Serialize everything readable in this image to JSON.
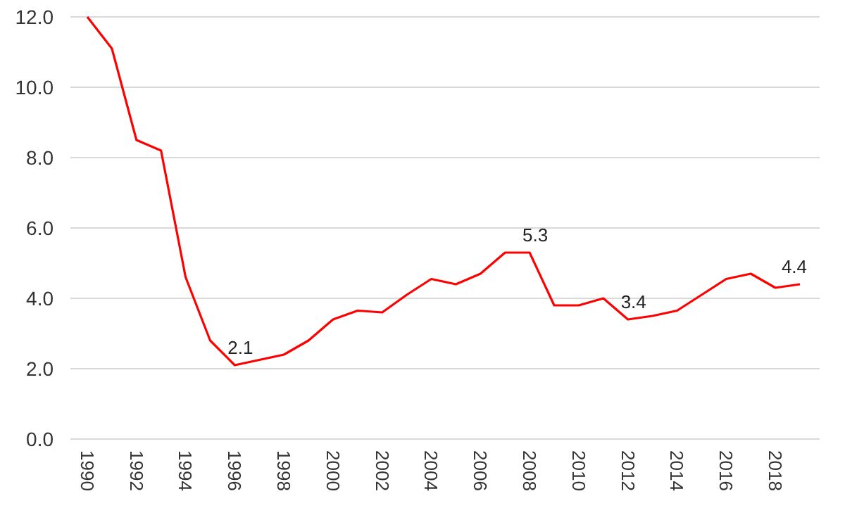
{
  "chart_data": {
    "type": "line",
    "categories": [
      "1990",
      null,
      "1992",
      null,
      "1994",
      null,
      "1996",
      null,
      "1998",
      null,
      "2000",
      null,
      "2002",
      null,
      "2004",
      null,
      "2006",
      null,
      "2008",
      null,
      "2010",
      null,
      "2012",
      null,
      "2014",
      null,
      "2016",
      null,
      "2018",
      null
    ],
    "series": [
      {
        "color": "#ff0000",
        "values": [
          12.0,
          11.1,
          8.5,
          8.2,
          4.6,
          2.8,
          2.1,
          2.25,
          2.4,
          2.8,
          3.4,
          3.65,
          3.6,
          4.1,
          4.55,
          4.4,
          4.7,
          5.3,
          5.3,
          3.8,
          3.8,
          4.0,
          3.4,
          3.5,
          3.65,
          4.1,
          4.55,
          4.7,
          4.3,
          4.4
        ],
        "value_labels": [
          null,
          null,
          null,
          null,
          null,
          null,
          "2.1",
          null,
          null,
          null,
          null,
          null,
          null,
          null,
          null,
          null,
          null,
          null,
          "5.3",
          null,
          null,
          null,
          "3.4",
          null,
          null,
          null,
          null,
          null,
          null,
          "4.4"
        ]
      }
    ],
    "ylim": [
      0,
      12
    ],
    "yticks": [
      {
        "value": 0,
        "label": "0.0"
      },
      {
        "value": 2,
        "label": "2.0"
      },
      {
        "value": 4,
        "label": "4.0"
      },
      {
        "value": 6,
        "label": "6.0"
      },
      {
        "value": 8,
        "label": "8.0"
      },
      {
        "value": 10,
        "label": "10.0"
      },
      {
        "value": 12,
        "label": "12.0"
      }
    ],
    "grid": "y",
    "marker": "none",
    "line_style": "solid"
  }
}
